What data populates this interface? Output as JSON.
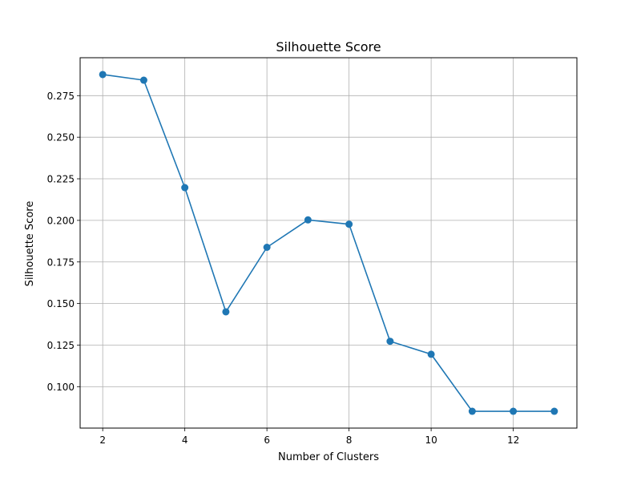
{
  "chart_data": {
    "type": "line",
    "title": "Silhouette Score",
    "xlabel": "Number of Clusters",
    "ylabel": "Silhouette Score",
    "x": [
      2,
      3,
      4,
      5,
      6,
      7,
      8,
      9,
      10,
      11,
      12,
      13
    ],
    "series": [
      {
        "values": [
          0.2877,
          0.2843,
          0.2197,
          0.145,
          0.1838,
          0.2003,
          0.1977,
          0.1273,
          0.1195,
          0.0852,
          0.0852,
          0.0852
        ]
      }
    ],
    "xlim": [
      1.45,
      13.55
    ],
    "ylim": [
      0.0751,
      0.2978
    ],
    "x_ticks": [
      2,
      4,
      6,
      8,
      10,
      12
    ],
    "x_tick_labels": [
      "2",
      "4",
      "6",
      "8",
      "10",
      "12"
    ],
    "y_ticks": [
      0.1,
      0.125,
      0.15,
      0.175,
      0.2,
      0.225,
      0.25,
      0.275
    ],
    "y_tick_labels": [
      "0.100",
      "0.125",
      "0.150",
      "0.175",
      "0.200",
      "0.225",
      "0.250",
      "0.275"
    ],
    "grid": true,
    "markers": "circle",
    "colors": {
      "line": "#1f77b4",
      "grid": "#b0b0b0",
      "axes": "#000000"
    }
  }
}
